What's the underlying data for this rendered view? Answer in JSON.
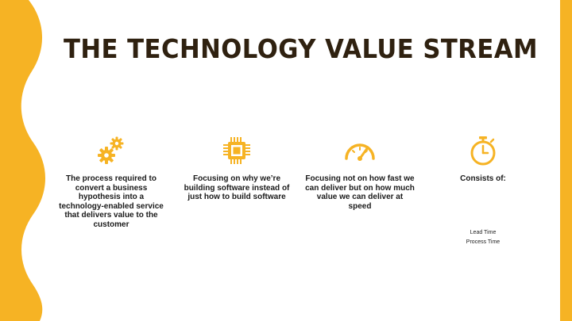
{
  "slide": {
    "title": "THE TECHNOLOGY VALUE STREAM",
    "accent_color": "#f6b324",
    "title_color": "#2f2110",
    "columns": [
      {
        "icon": "gears-icon",
        "text": "The process required to convert a business hypothesis into a technology-enabled service that delivers value to the customer"
      },
      {
        "icon": "processor-chip-icon",
        "text": "Focusing on why we’re building software instead of just how to build software"
      },
      {
        "icon": "speedometer-icon",
        "text": "Focusing not on how fast we can deliver but on how much value we can deliver at speed"
      },
      {
        "icon": "stopwatch-icon",
        "text": "Consists of:",
        "sub_items": [
          "Lead Time",
          "Process Time"
        ]
      }
    ]
  }
}
